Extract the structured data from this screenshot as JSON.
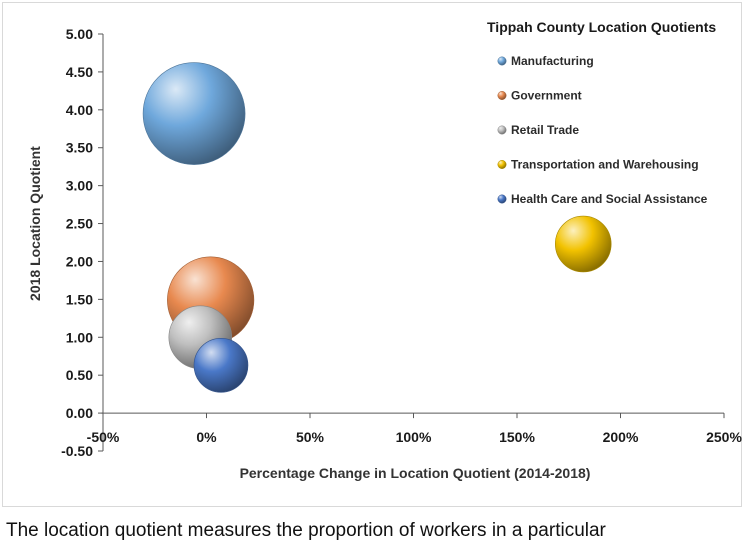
{
  "chart_data": {
    "type": "bubble",
    "title": "Tippah County Location Quotients",
    "xlabel": "Percentage Change in Location Quotient (2014-2018)",
    "ylabel": "2018 Location Quotient",
    "xlim": [
      -50,
      250
    ],
    "ylim": [
      -0.5,
      5.0
    ],
    "x_ticks": [
      "-50%",
      "0%",
      "50%",
      "100%",
      "150%",
      "200%",
      "250%"
    ],
    "x_tick_values": [
      -50,
      0,
      50,
      100,
      150,
      200,
      250
    ],
    "y_ticks": [
      "-0.50",
      "0.00",
      "0.50",
      "1.00",
      "1.50",
      "2.00",
      "2.50",
      "3.00",
      "3.50",
      "4.00",
      "4.50",
      "5.00"
    ],
    "y_tick_values": [
      -0.5,
      0,
      0.5,
      1.0,
      1.5,
      2.0,
      2.5,
      3.0,
      3.5,
      4.0,
      4.5,
      5.0
    ],
    "legend_position": "top-right",
    "grid": false,
    "series": [
      {
        "name": "Manufacturing",
        "x": -6,
        "y": 3.95,
        "size": 1.0,
        "color": "#6fa8dc"
      },
      {
        "name": "Government",
        "x": 2,
        "y": 1.49,
        "size": 0.72,
        "color": "#e8894f"
      },
      {
        "name": "Retail Trade",
        "x": -3,
        "y": 1.0,
        "size": 0.38,
        "color": "#bfbfbf"
      },
      {
        "name": "Transportation and Warehousing",
        "x": 182,
        "y": 2.23,
        "size": 0.3,
        "color": "#f2c200"
      },
      {
        "name": "Health Care and Social Assistance",
        "x": 7,
        "y": 0.63,
        "size": 0.28,
        "color": "#4a78c8"
      }
    ]
  },
  "caption_text": "The location quotient measures the proportion of workers in a particular"
}
